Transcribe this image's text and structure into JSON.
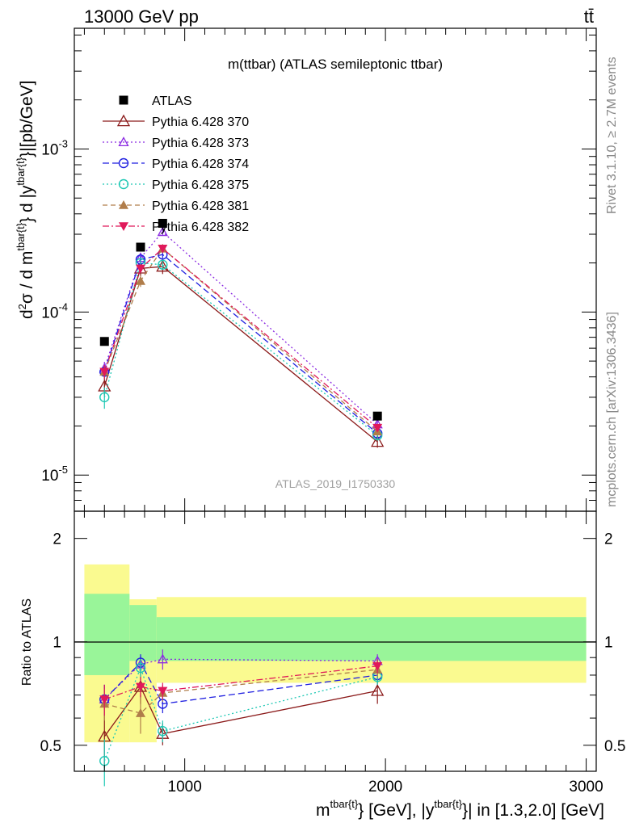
{
  "header": {
    "energy": "13000 GeV pp",
    "process": "tt̄",
    "plot_title": "m(ttbar) (ATLAS semileptonic ttbar)",
    "analysis_id": "ATLAS_2019_I1750330",
    "rivet_label": "Rivet 3.1.10, ≥ 2.7M events",
    "source_label": "mcplots.cern.ch [arXiv:1306.3436]"
  },
  "colors": {
    "data": "#000000",
    "s370": "#8b1a1a",
    "s373": "#8b2be2",
    "s374": "#1f1fe0",
    "s375": "#1ec8b4",
    "s381": "#b07d4a",
    "s382": "#e0195a",
    "band_inner": "#99f599",
    "band_outer": "#fafa90"
  },
  "chart_data": [
    {
      "type": "scatter",
      "panel": "main",
      "ylabel": "d²σ / d m^{tbar{t}} d |y^{tbar{t}}|[pb/GeV]",
      "yscale": "log",
      "ylim": [
        6e-06,
        0.0055
      ],
      "y_ticks": [
        {
          "value": 1e-05,
          "label": "10^-5"
        },
        {
          "value": 0.0001,
          "label": "10^-4"
        },
        {
          "value": 0.001,
          "label": "10^-3"
        }
      ],
      "x": [
        600,
        780,
        890,
        1960
      ],
      "series": [
        {
          "name": "ATLAS",
          "key": "data",
          "marker": "square",
          "dash": "",
          "values": [
            6.6e-05,
            0.00025,
            0.00035,
            2.3e-05
          ]
        },
        {
          "name": "Pythia 6.428 370",
          "key": "s370",
          "marker": "triangle-open",
          "dash": "",
          "values": [
            3.5e-05,
            0.000185,
            0.00019,
            1.6e-05
          ],
          "errors": [
            0.12,
            0.1,
            0.1,
            0.08
          ]
        },
        {
          "name": "Pythia 6.428 373",
          "key": "s373",
          "marker": "triangle-open-small",
          "dash": "2,3",
          "values": [
            4.5e-05,
            0.000215,
            0.00031,
            2.05e-05
          ],
          "errors": [
            0.1,
            0.05,
            0.05,
            0.05
          ]
        },
        {
          "name": "Pythia 6.428 374",
          "key": "s374",
          "marker": "circle-open",
          "dash": "8,4",
          "values": [
            4.3e-05,
            0.00021,
            0.000225,
            1.8e-05
          ],
          "errors": [
            0.1,
            0.05,
            0.05,
            0.05
          ]
        },
        {
          "name": "Pythia 6.428 375",
          "key": "s375",
          "marker": "circle-open-cyan",
          "dash": "2,3",
          "values": [
            3e-05,
            0.0002,
            0.000195,
            1.75e-05
          ],
          "errors": [
            0.15,
            0.05,
            0.05,
            0.05
          ]
        },
        {
          "name": "Pythia 6.428 381",
          "key": "s381",
          "marker": "triangle-filled",
          "dash": "6,4",
          "values": [
            4.3e-05,
            0.000155,
            0.000245,
            1.85e-05
          ],
          "errors": [
            0.1,
            0.08,
            0.05,
            0.05
          ]
        },
        {
          "name": "Pythia 6.428 382",
          "key": "s382",
          "marker": "triangle-down-filled",
          "dash": "8,3,2,3",
          "values": [
            4.3e-05,
            0.000185,
            0.000245,
            1.95e-05
          ],
          "errors": [
            0.1,
            0.06,
            0.05,
            0.05
          ]
        }
      ]
    },
    {
      "type": "scatter",
      "panel": "ratio",
      "ylabel": "Ratio to ATLAS",
      "xlabel": "m^{tbar{t}} [GeV], |y^{tbar{t}}| in [1.3,2.0] [GeV]",
      "xlim": [
        450,
        3050
      ],
      "ylim": [
        0.42,
        2.4
      ],
      "x_ticks": [
        1000,
        2000,
        3000
      ],
      "y_ticks": [
        0.5,
        1,
        2
      ],
      "x": [
        600,
        780,
        890,
        1960
      ],
      "bands": [
        {
          "x0": 500,
          "x1": 725,
          "outer": [
            0.51,
            1.68
          ],
          "inner": [
            0.8,
            1.38
          ]
        },
        {
          "x0": 725,
          "x1": 860,
          "outer": [
            0.51,
            1.33
          ],
          "inner": [
            0.88,
            1.28
          ]
        },
        {
          "x0": 860,
          "x1": 3000,
          "outer": [
            0.76,
            1.35
          ],
          "inner": [
            0.88,
            1.18
          ]
        }
      ],
      "series": [
        {
          "name": "Pythia 6.428 370",
          "key": "s370",
          "values": [
            0.53,
            0.74,
            0.54,
            0.72
          ],
          "errors": [
            0.1,
            0.08,
            0.04,
            0.06
          ]
        },
        {
          "name": "Pythia 6.428 373",
          "key": "s373",
          "values": [
            0.68,
            0.86,
            0.89,
            0.88
          ],
          "errors": [
            0.07,
            0.05,
            0.06,
            0.04
          ]
        },
        {
          "name": "Pythia 6.428 374",
          "key": "s374",
          "values": [
            0.68,
            0.87,
            0.66,
            0.8
          ],
          "errors": [
            0.07,
            0.05,
            0.04,
            0.04
          ]
        },
        {
          "name": "Pythia 6.428 375",
          "key": "s375",
          "values": [
            0.45,
            0.84,
            0.55,
            0.79
          ],
          "errors": [
            0.07,
            0.05,
            0.04,
            0.04
          ]
        },
        {
          "name": "Pythia 6.428 381",
          "key": "s381",
          "values": [
            0.66,
            0.62,
            0.71,
            0.83
          ],
          "errors": [
            0.07,
            0.08,
            0.04,
            0.04
          ]
        },
        {
          "name": "Pythia 6.428 382",
          "key": "s382",
          "values": [
            0.68,
            0.74,
            0.72,
            0.85
          ],
          "errors": [
            0.07,
            0.05,
            0.04,
            0.04
          ]
        }
      ]
    }
  ]
}
